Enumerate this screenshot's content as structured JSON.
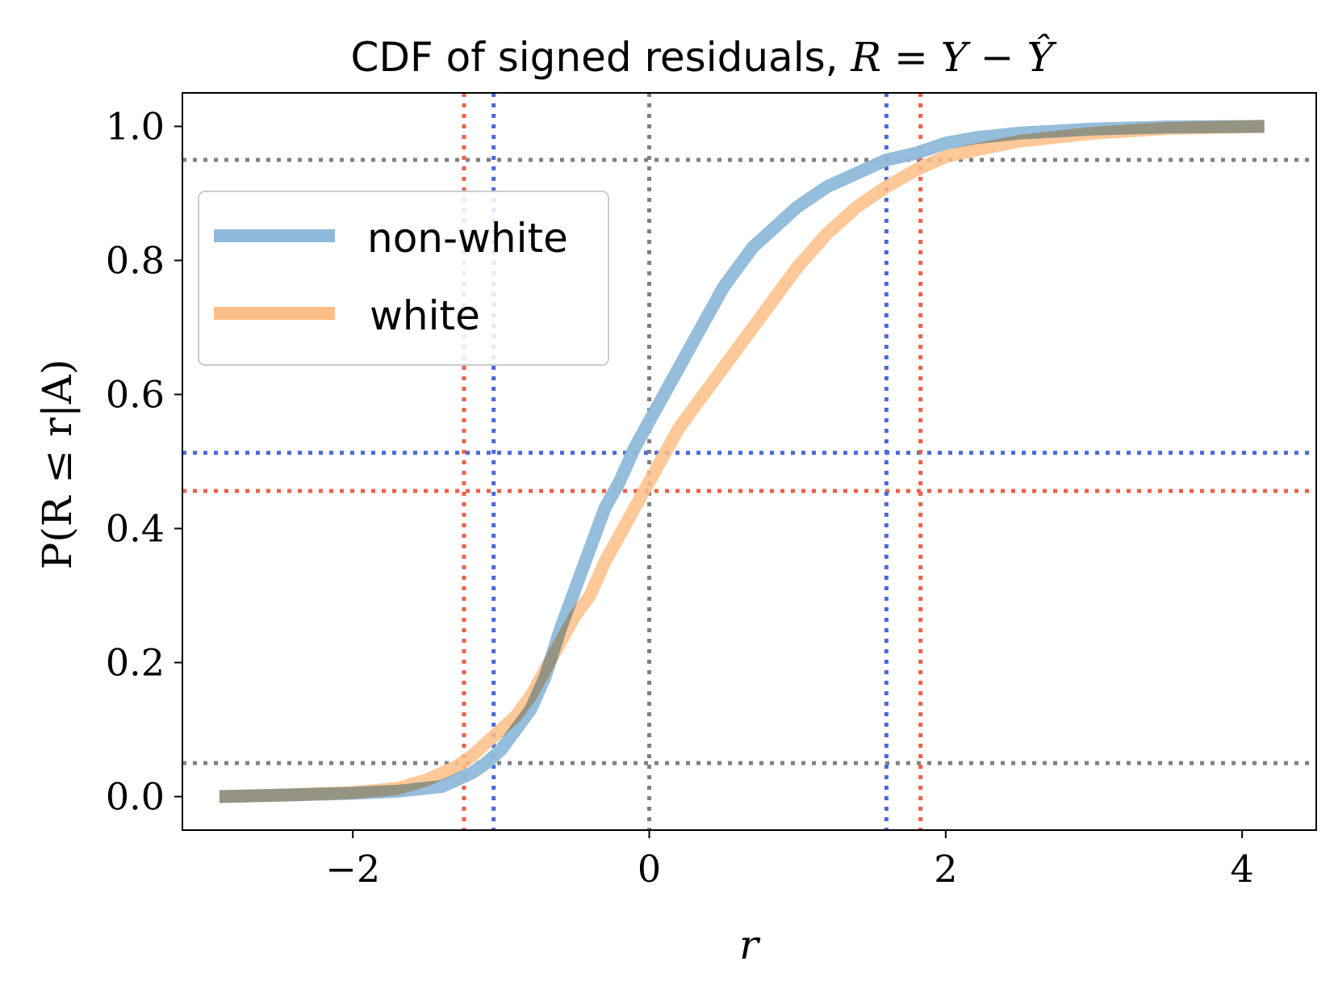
{
  "chart_data": {
    "type": "line",
    "title_prefix": "CDF of signed residuals, ",
    "title_math": "R = Y − Ŷ",
    "xlabel": "r",
    "ylabel": "P(R ≤ r|A)",
    "xlim": [
      -3.15,
      4.5
    ],
    "ylim": [
      -0.05,
      1.05
    ],
    "xticks": [
      -2,
      0,
      2,
      4
    ],
    "xtick_labels": [
      "−2",
      "0",
      "2",
      "4"
    ],
    "yticks": [
      0.0,
      0.2,
      0.4,
      0.6,
      0.8,
      1.0
    ],
    "ytick_labels": [
      "0.0",
      "0.2",
      "0.4",
      "0.6",
      "0.8",
      "1.0"
    ],
    "grid": false,
    "legend_position": "upper-left",
    "series": [
      {
        "name": "non-white",
        "color": "#8fb9da",
        "x": [
          -2.9,
          -2.5,
          -2.0,
          -1.7,
          -1.4,
          -1.3,
          -1.2,
          -1.1,
          -1.0,
          -0.9,
          -0.8,
          -0.7,
          -0.6,
          -0.5,
          -0.4,
          -0.3,
          -0.2,
          -0.1,
          0.0,
          0.1,
          0.2,
          0.3,
          0.4,
          0.5,
          0.6,
          0.7,
          0.8,
          0.9,
          1.0,
          1.2,
          1.4,
          1.6,
          1.8,
          2.0,
          2.2,
          2.5,
          3.0,
          3.5,
          4.15
        ],
        "y": [
          0.0,
          0.002,
          0.005,
          0.008,
          0.015,
          0.025,
          0.035,
          0.05,
          0.07,
          0.1,
          0.13,
          0.18,
          0.25,
          0.31,
          0.37,
          0.43,
          0.47,
          0.52,
          0.56,
          0.6,
          0.64,
          0.68,
          0.72,
          0.76,
          0.79,
          0.82,
          0.84,
          0.86,
          0.88,
          0.91,
          0.93,
          0.95,
          0.96,
          0.975,
          0.983,
          0.99,
          0.996,
          0.999,
          1.0
        ]
      },
      {
        "name": "white",
        "color": "#ffbe86",
        "x": [
          -2.9,
          -2.5,
          -2.0,
          -1.7,
          -1.5,
          -1.3,
          -1.2,
          -1.1,
          -1.0,
          -0.9,
          -0.8,
          -0.7,
          -0.6,
          -0.5,
          -0.4,
          -0.3,
          -0.2,
          -0.1,
          0.0,
          0.1,
          0.2,
          0.3,
          0.4,
          0.5,
          0.6,
          0.7,
          0.8,
          0.9,
          1.0,
          1.2,
          1.4,
          1.6,
          1.8,
          2.0,
          2.2,
          2.5,
          3.0,
          3.5,
          4.15
        ],
        "y": [
          0.0,
          0.002,
          0.006,
          0.012,
          0.025,
          0.045,
          0.06,
          0.08,
          0.1,
          0.12,
          0.15,
          0.19,
          0.23,
          0.27,
          0.3,
          0.35,
          0.39,
          0.43,
          0.47,
          0.51,
          0.55,
          0.58,
          0.61,
          0.64,
          0.67,
          0.7,
          0.73,
          0.76,
          0.79,
          0.84,
          0.88,
          0.91,
          0.935,
          0.955,
          0.965,
          0.978,
          0.99,
          0.997,
          1.0
        ]
      }
    ],
    "reference_lines": {
      "vertical": [
        {
          "x": -1.25,
          "color": "#f06048"
        },
        {
          "x": -1.05,
          "color": "#4a68e0"
        },
        {
          "x": 0.0,
          "color": "#808080"
        },
        {
          "x": 1.6,
          "color": "#4a68e0"
        },
        {
          "x": 1.83,
          "color": "#f06048"
        }
      ],
      "horizontal": [
        {
          "y": 0.05,
          "color": "#808080"
        },
        {
          "y": 0.95,
          "color": "#808080"
        },
        {
          "y": 0.513,
          "color": "#4a68e0"
        },
        {
          "y": 0.456,
          "color": "#f06048"
        }
      ]
    }
  }
}
